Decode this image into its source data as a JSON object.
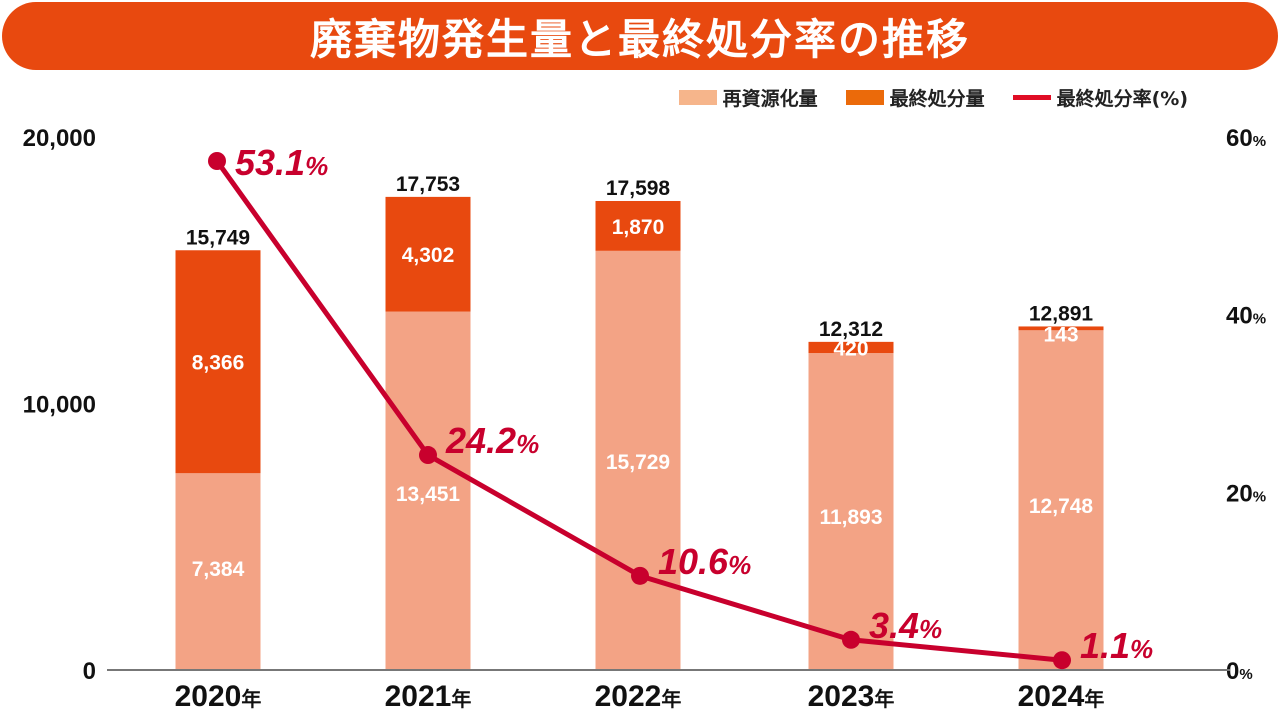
{
  "chart_data": {
    "type": "bar",
    "title": "廃棄物発生量と最終処分率の推移",
    "categories": [
      "2020",
      "2021",
      "2022",
      "2023",
      "2024"
    ],
    "category_suffix": "年",
    "series": [
      {
        "name": "再資源化量",
        "kind": "stacked-bar",
        "axis": "left",
        "color": "#f3a385",
        "legend_color": "#f6b58b",
        "values": [
          7384,
          13451,
          15729,
          11893,
          12748
        ],
        "labels": [
          "7,384",
          "13,451",
          "15,729",
          "11,893",
          "12,748"
        ]
      },
      {
        "name": "最終処分量",
        "kind": "stacked-bar",
        "axis": "left",
        "color": "#e8490f",
        "legend_color": "#eb6a0a",
        "values": [
          8366,
          4302,
          1870,
          420,
          143
        ],
        "labels": [
          "8,366",
          "4,302",
          "1,870",
          "420",
          "143"
        ]
      },
      {
        "name": "最終処分率(%)",
        "kind": "line",
        "axis": "right",
        "color": "#c8002d",
        "legend_color": "#e00d25",
        "values": [
          53.1,
          24.2,
          10.6,
          3.4,
          1.1
        ],
        "labels": [
          "53.1",
          "24.2",
          "10.6",
          "3.4",
          "1.1"
        ],
        "label_suffix": "%"
      }
    ],
    "totals": {
      "values": [
        15749,
        17753,
        17598,
        12312,
        12891
      ],
      "labels": [
        "15,749",
        "17,753",
        "17,598",
        "12,312",
        "12,891"
      ]
    },
    "y_left": {
      "range": [
        0,
        20000
      ],
      "ticks": [
        0,
        10000,
        20000
      ],
      "tick_labels": [
        "0",
        "10,000",
        "20,000"
      ]
    },
    "y_right": {
      "range": [
        0,
        60
      ],
      "ticks": [
        0,
        20,
        40,
        60
      ],
      "tick_labels": [
        "0",
        "20",
        "40",
        "60"
      ],
      "suffix": "%"
    },
    "xlabel": "",
    "ylabel": "",
    "grid": false,
    "legend_position": "top-right"
  }
}
